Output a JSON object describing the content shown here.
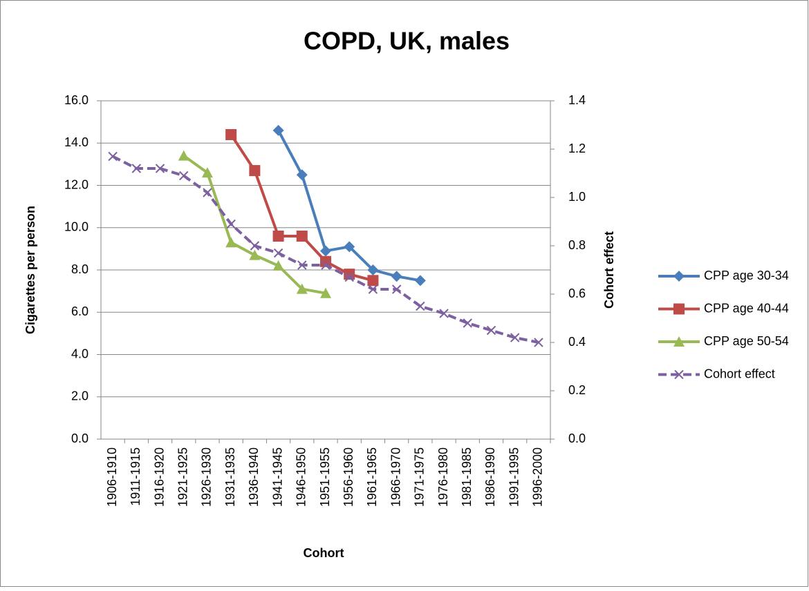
{
  "chart_data": {
    "type": "line",
    "title": "COPD, UK, males",
    "x_label": "Cohort",
    "y_label": "Cigarettes per person",
    "y2_label": "Cohort effect",
    "categories": [
      "1906-1910",
      "1911-1915",
      "1916-1920",
      "1921-1925",
      "1926-1930",
      "1931-1935",
      "1936-1940",
      "1941-1945",
      "1946-1950",
      "1951-1955",
      "1956-1960",
      "1961-1965",
      "1966-1970",
      "1971-1975",
      "1976-1980",
      "1981-1985",
      "1986-1990",
      "1991-1995",
      "1996-2000"
    ],
    "ylim": [
      0,
      16
    ],
    "yticks": [
      {
        "value": 0,
        "label": "0.0"
      },
      {
        "value": 2,
        "label": "2.0"
      },
      {
        "value": 4,
        "label": "4.0"
      },
      {
        "value": 6,
        "label": "6.0"
      },
      {
        "value": 8,
        "label": "8.0"
      },
      {
        "value": 10,
        "label": "10.0"
      },
      {
        "value": 12,
        "label": "12.0"
      },
      {
        "value": 14,
        "label": "14.0"
      },
      {
        "value": 16,
        "label": "16.0"
      }
    ],
    "y2lim": [
      0,
      1.4
    ],
    "y2ticks": [
      {
        "value": 0,
        "label": "0.0"
      },
      0.2,
      0.4,
      0.6,
      0.8,
      {
        "value": 1,
        "label": "1.0"
      },
      1.2,
      1.4
    ],
    "grid": true,
    "legend": "right",
    "series": [
      {
        "name": "CPP age 30-34",
        "color": "#4a7ebb",
        "marker": "diamond",
        "values": [
          null,
          null,
          null,
          null,
          null,
          null,
          null,
          14.6,
          12.5,
          8.9,
          9.1,
          8.0,
          7.7,
          7.5,
          null,
          null,
          null,
          null,
          null
        ]
      },
      {
        "name": "CPP age 40-44",
        "color": "#be4b48",
        "marker": "square",
        "values": [
          null,
          null,
          null,
          null,
          null,
          14.4,
          12.7,
          9.6,
          9.6,
          8.4,
          7.8,
          7.5,
          null,
          null,
          null,
          null,
          null,
          null,
          null
        ]
      },
      {
        "name": "CPP age 50-54",
        "color": "#98b954",
        "marker": "triangle",
        "values": [
          null,
          null,
          null,
          13.4,
          12.6,
          9.3,
          8.7,
          8.2,
          7.1,
          6.9,
          null,
          null,
          null,
          null,
          null,
          null,
          null,
          null,
          null
        ]
      },
      {
        "name": "Cohort effect",
        "color": "#7d60a0",
        "marker": "x",
        "dashed": true,
        "axis": "y2",
        "values": [
          1.17,
          1.12,
          1.12,
          1.09,
          1.02,
          0.89,
          0.8,
          0.77,
          0.72,
          0.72,
          0.67,
          0.62,
          0.62,
          0.55,
          0.52,
          0.48,
          0.45,
          0.42,
          0.4
        ]
      }
    ]
  }
}
